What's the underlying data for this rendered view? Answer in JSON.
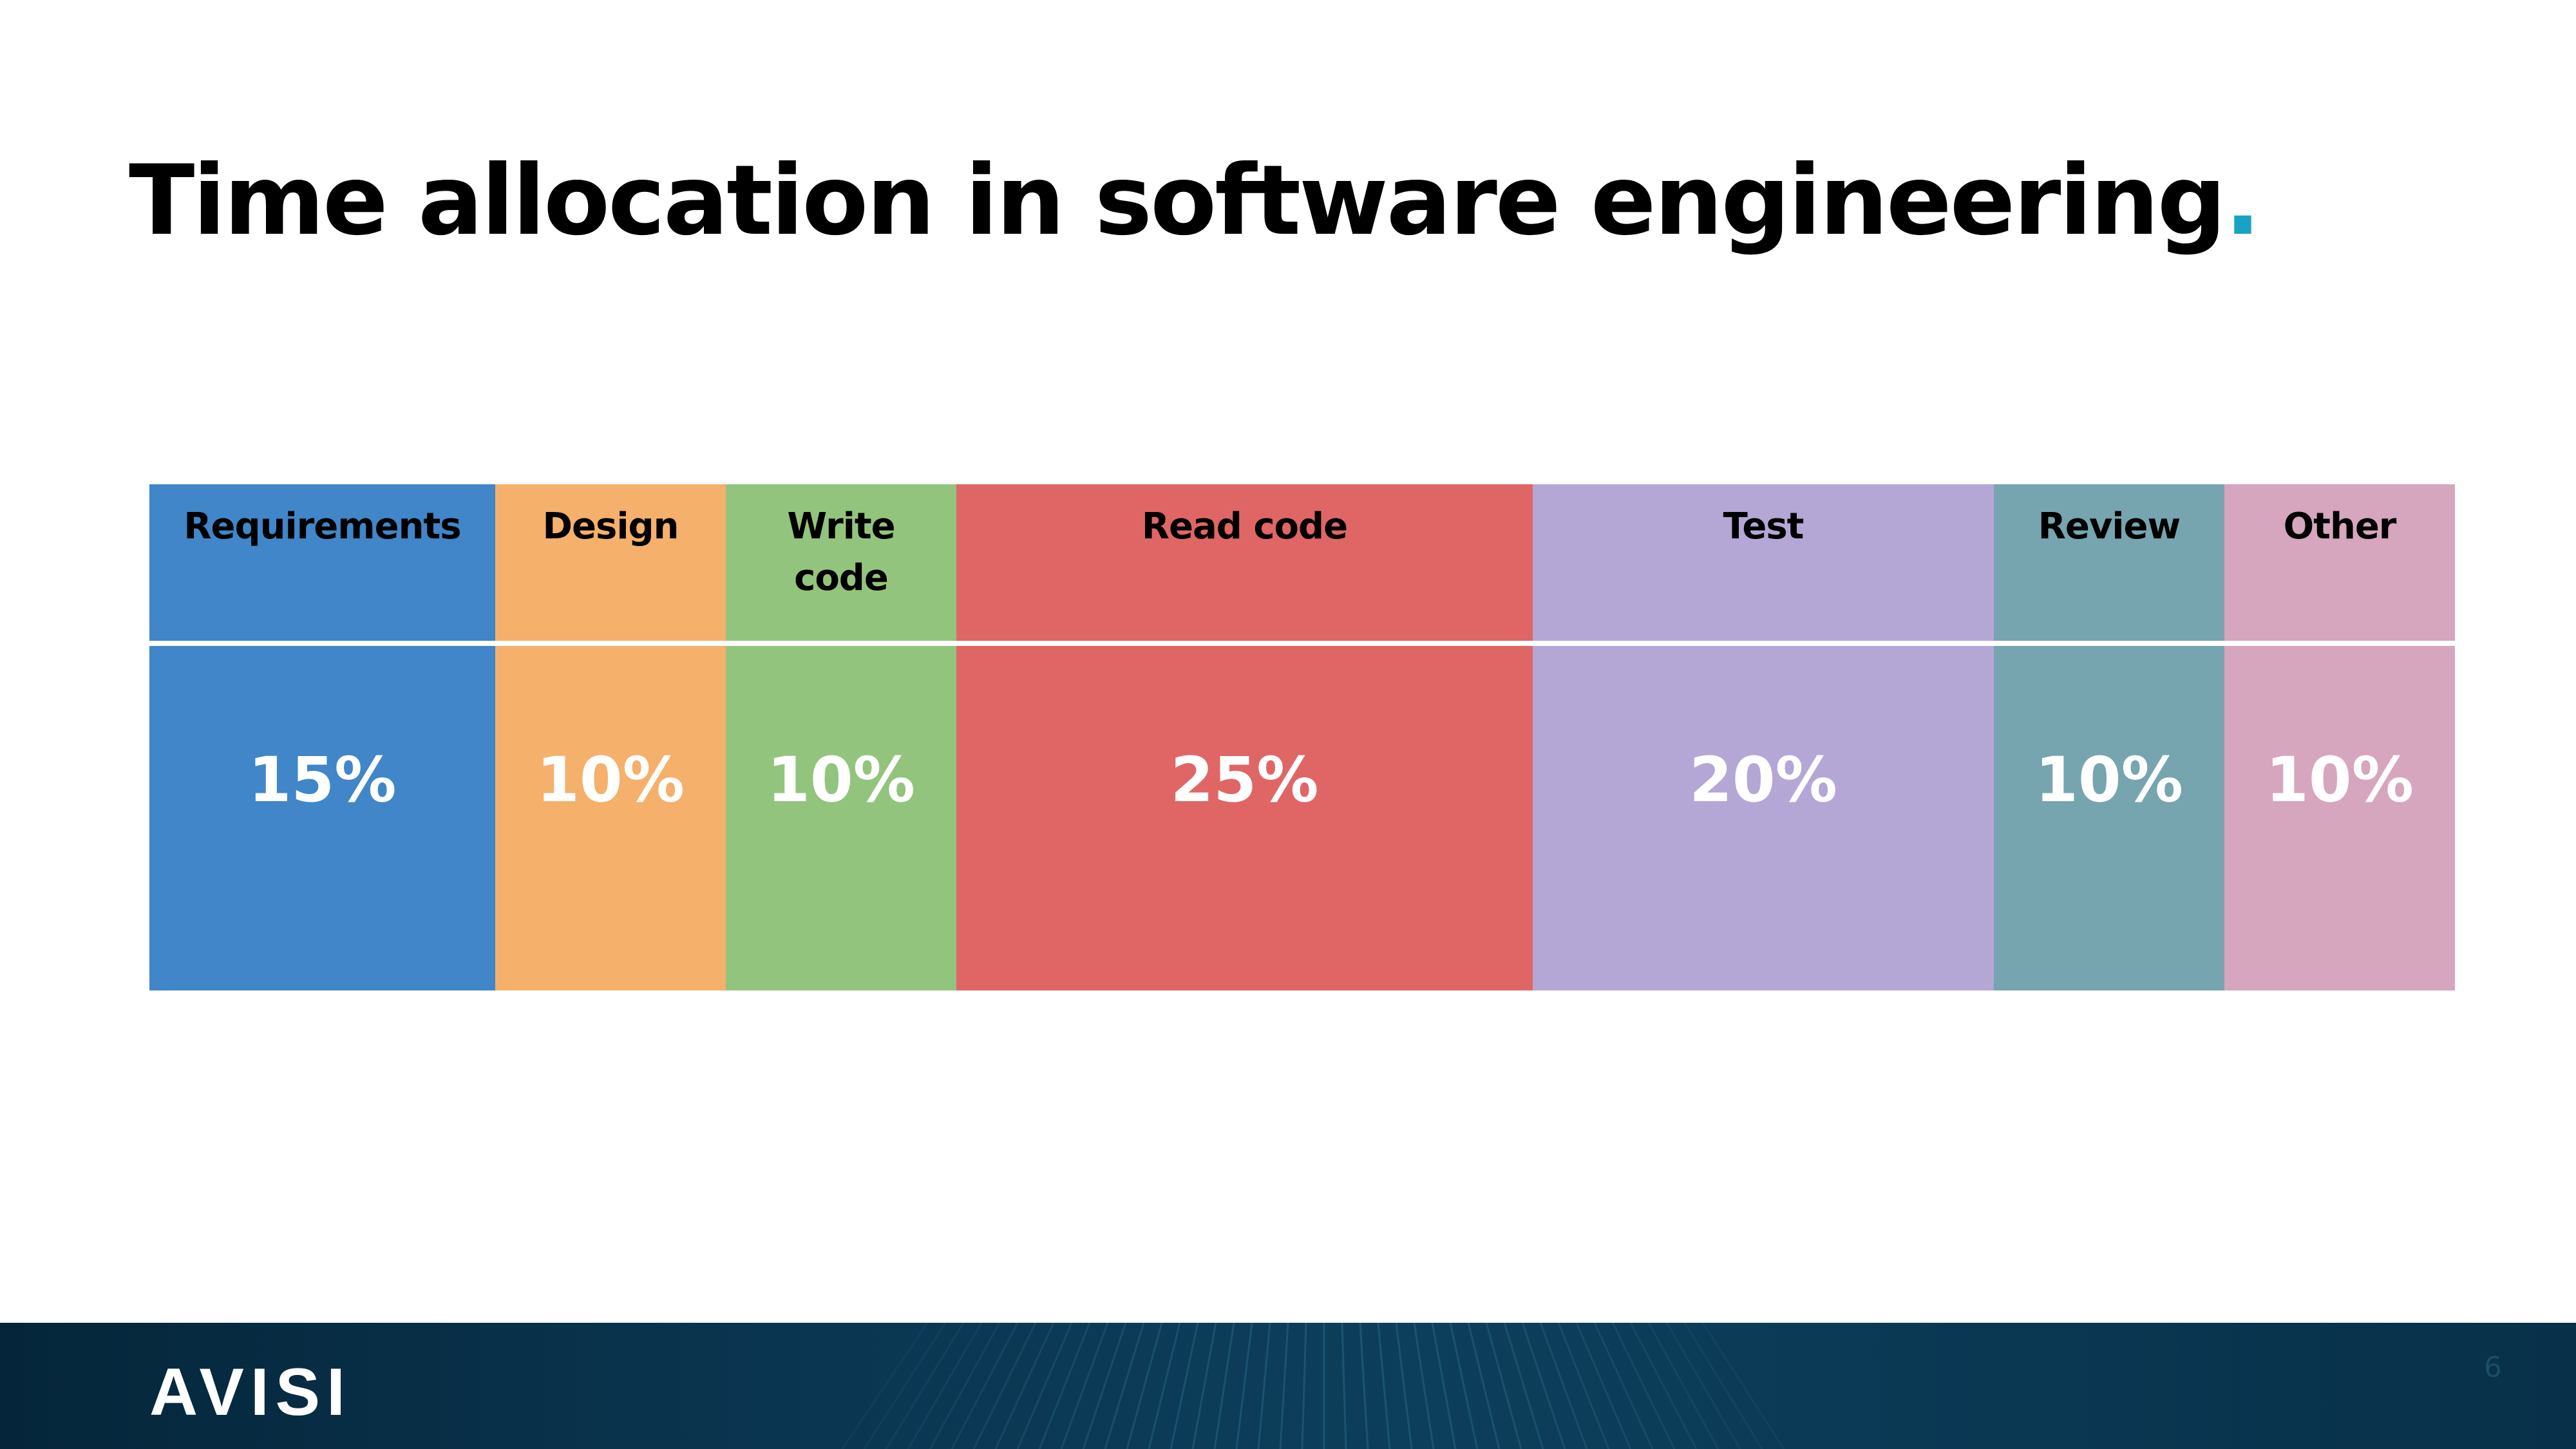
{
  "slide": {
    "title": "Time allocation in software engineering",
    "title_dot": ".",
    "page_number": "6"
  },
  "brand": {
    "logo_text": "AVISI"
  },
  "colors": {
    "accent": "#1aa2c2",
    "footer": "#0a3550"
  },
  "chart_data": {
    "type": "bar",
    "layout": "stacked-horizontal-100",
    "categories": [
      "Requirements",
      "Design",
      "Write code",
      "Read code",
      "Test",
      "Review",
      "Other"
    ],
    "values": [
      15,
      10,
      10,
      25,
      20,
      10,
      10
    ],
    "labels": [
      "15%",
      "10%",
      "10%",
      "25%",
      "20%",
      "10%",
      "10%"
    ],
    "unit": "%",
    "colors": [
      "#4086c8",
      "#f5b06c",
      "#93c47d",
      "#e06666",
      "#b4a7d6",
      "#76a5af",
      "#d5a6bd"
    ],
    "title": "",
    "xlabel": "",
    "ylabel": "",
    "legend": "none",
    "grid": false
  }
}
